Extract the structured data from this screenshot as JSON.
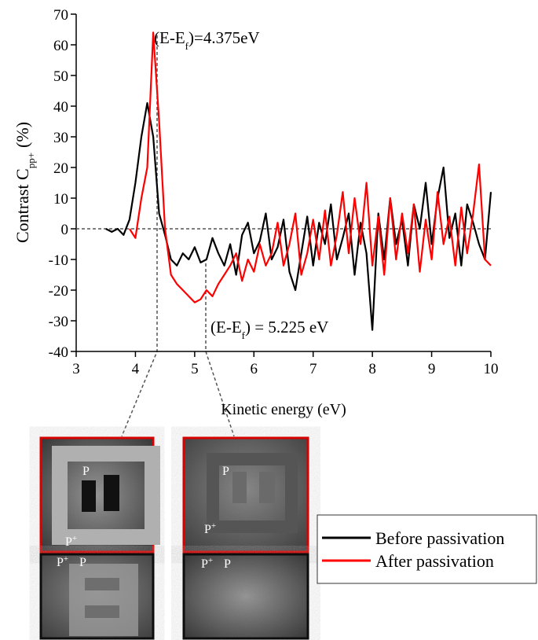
{
  "chart_data": {
    "type": "line",
    "xlabel": "Kinetic energy (eV)",
    "ylabel": {
      "main": "Contrast C",
      "sub": "pp+",
      "unit": "(%)"
    },
    "xlim": [
      3,
      10
    ],
    "ylim": [
      -40,
      70
    ],
    "xticks": [
      3,
      4,
      5,
      6,
      7,
      8,
      9,
      10
    ],
    "yticks": [
      -40,
      -30,
      -20,
      -10,
      0,
      10,
      20,
      30,
      40,
      50,
      60,
      70
    ],
    "hline": 0,
    "annotations": [
      {
        "before": "(E-E",
        "sub": "f",
        "after": ")=4.375eV"
      },
      {
        "before": "(E-E",
        "sub": "f",
        "after": ") = 5.225 eV"
      }
    ],
    "series": [
      {
        "name": "Before passivation",
        "color": "#000000",
        "x": [
          3.5,
          3.6,
          3.7,
          3.8,
          3.9,
          4.0,
          4.1,
          4.2,
          4.3,
          4.4,
          4.5,
          4.6,
          4.7,
          4.8,
          4.9,
          5.0,
          5.1,
          5.2,
          5.3,
          5.4,
          5.5,
          5.6,
          5.7,
          5.8,
          5.9,
          6.0,
          6.1,
          6.2,
          6.3,
          6.4,
          6.5,
          6.6,
          6.7,
          6.8,
          6.9,
          7.0,
          7.1,
          7.2,
          7.3,
          7.4,
          7.5,
          7.6,
          7.7,
          7.8,
          7.9,
          8.0,
          8.1,
          8.2,
          8.3,
          8.4,
          8.5,
          8.6,
          8.7,
          8.8,
          8.9,
          9.0,
          9.1,
          9.2,
          9.3,
          9.4,
          9.5,
          9.6,
          9.7,
          9.8,
          9.9,
          10.0
        ],
        "values": [
          0,
          -1,
          0,
          -2,
          3,
          15,
          30,
          41,
          30,
          5,
          -2,
          -10,
          -12,
          -8,
          -10,
          -6,
          -11,
          -10,
          -3,
          -8,
          -12,
          -5,
          -15,
          -2,
          2,
          -8,
          -4,
          5,
          -10,
          -6,
          3,
          -14,
          -20,
          -8,
          4,
          -12,
          2,
          -5,
          8,
          -10,
          -3,
          5,
          -15,
          2,
          -8,
          -33,
          5,
          -10,
          10,
          -5,
          3,
          -12,
          8,
          0,
          15,
          -5,
          10,
          20,
          -3,
          5,
          -12,
          8,
          2,
          -5,
          -10,
          12
        ]
      },
      {
        "name": "After passivation",
        "color": "#ff0000",
        "x": [
          3.9,
          4.0,
          4.1,
          4.2,
          4.3,
          4.4,
          4.5,
          4.6,
          4.7,
          4.8,
          4.9,
          5.0,
          5.1,
          5.2,
          5.3,
          5.4,
          5.5,
          5.6,
          5.7,
          5.8,
          5.9,
          6.0,
          6.1,
          6.2,
          6.3,
          6.4,
          6.5,
          6.6,
          6.7,
          6.8,
          6.9,
          7.0,
          7.1,
          7.2,
          7.3,
          7.4,
          7.5,
          7.6,
          7.7,
          7.8,
          7.9,
          8.0,
          8.1,
          8.2,
          8.3,
          8.4,
          8.5,
          8.6,
          8.7,
          8.8,
          8.9,
          9.0,
          9.1,
          9.2,
          9.3,
          9.4,
          9.5,
          9.6,
          9.7,
          9.8,
          9.9,
          10.0
        ],
        "values": [
          0,
          -3,
          10,
          20,
          64,
          35,
          0,
          -15,
          -18,
          -20,
          -22,
          -24,
          -23,
          -20,
          -22,
          -18,
          -15,
          -12,
          -8,
          -17,
          -10,
          -14,
          -5,
          -12,
          -8,
          2,
          -12,
          -5,
          5,
          -15,
          -8,
          3,
          -10,
          6,
          -12,
          -2,
          12,
          -8,
          10,
          -5,
          15,
          -12,
          4,
          -15,
          10,
          -10,
          5,
          -8,
          8,
          -14,
          3,
          -10,
          12,
          -5,
          4,
          -12,
          7,
          -8,
          5,
          21,
          -10,
          -12
        ]
      }
    ]
  },
  "images": [
    {
      "labels": [
        {
          "text": "P"
        },
        {
          "text": "P",
          "sup": "+"
        }
      ]
    },
    {
      "labels": [
        {
          "text": "P"
        },
        {
          "text": "P",
          "sup": "+"
        }
      ]
    },
    {
      "labels": [
        {
          "text": "P",
          "sup": "+"
        },
        {
          "text": "P"
        }
      ]
    },
    {
      "labels": [
        {
          "text": "P",
          "sup": "+"
        },
        {
          "text": "P"
        }
      ]
    }
  ]
}
